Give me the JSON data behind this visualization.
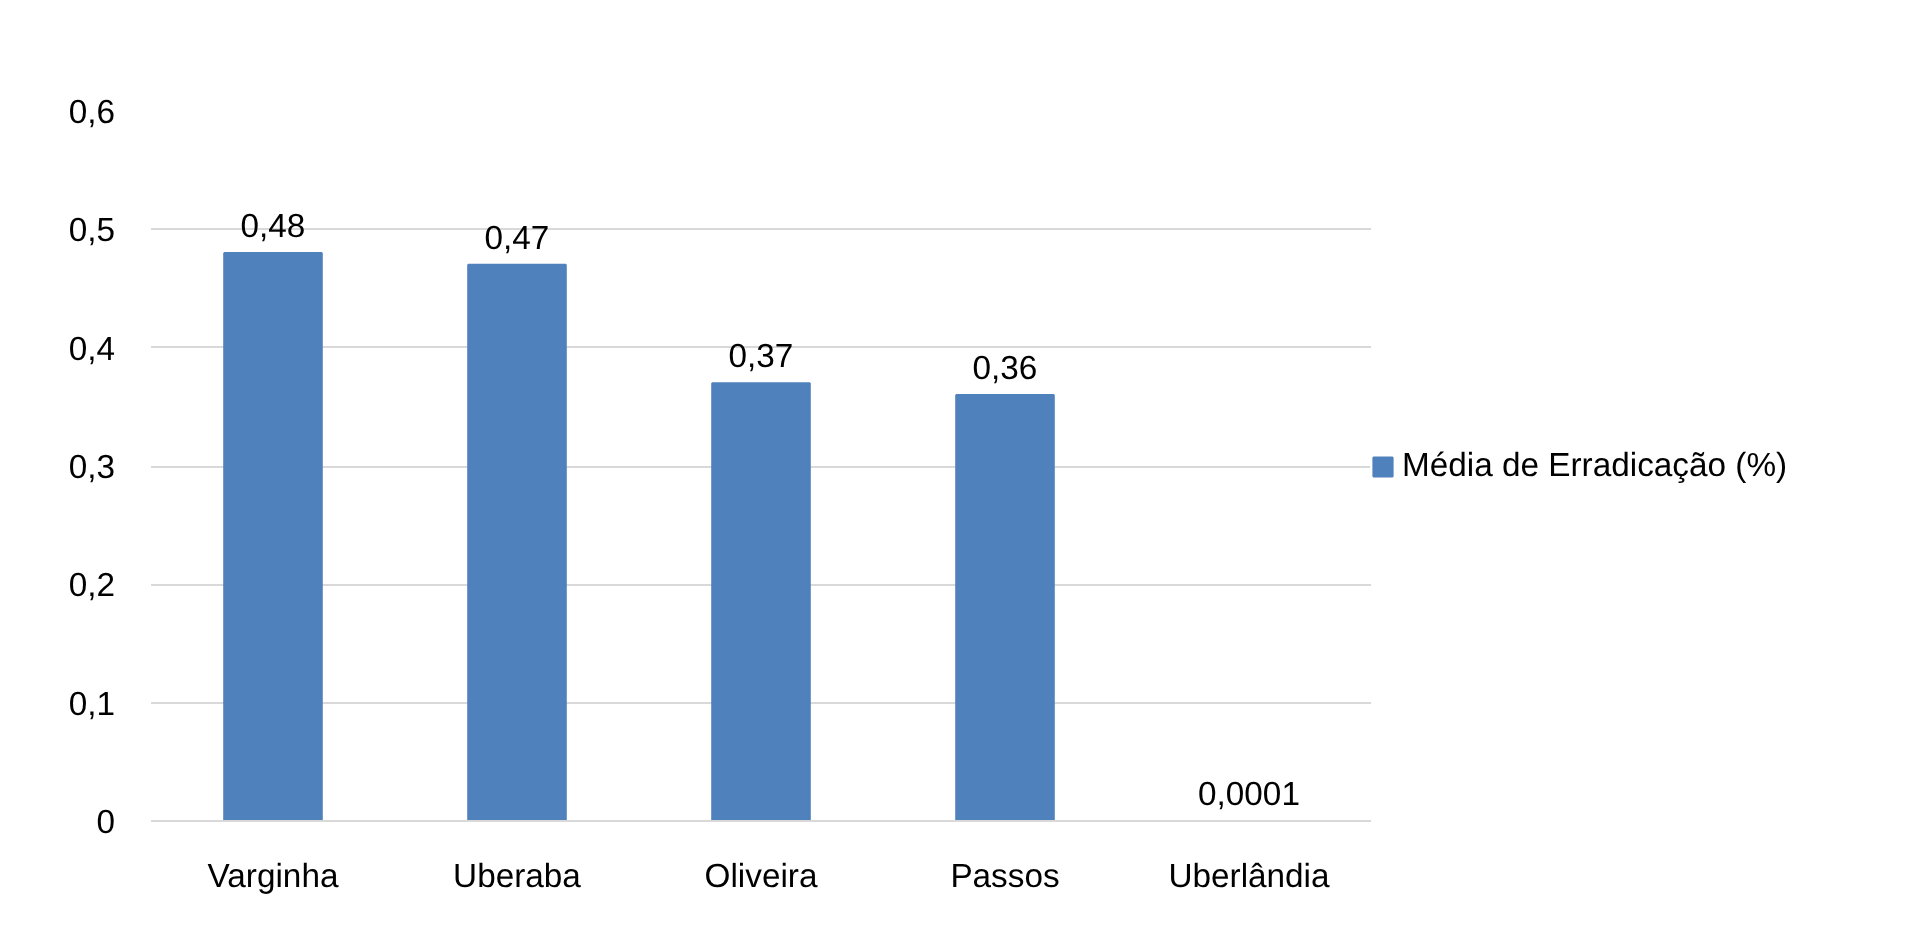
{
  "chart_data": {
    "type": "bar",
    "categories": [
      "Varginha",
      "Uberaba",
      "Oliveira",
      "Passos",
      "Uberlândia"
    ],
    "series": [
      {
        "name": "Média de Erradicação (%)",
        "color": "#4f81bd",
        "values": [
          0.48,
          0.47,
          0.37,
          0.36,
          0.0001
        ],
        "value_labels": [
          "0,48",
          "0,47",
          "0,37",
          "0,36",
          "0,0001"
        ]
      }
    ],
    "ylim": [
      0,
      0.6
    ],
    "yticks": [
      0,
      {
        "value": 0.1,
        "label": "0,1"
      },
      {
        "value": 0.2,
        "label": "0,2"
      },
      {
        "value": 0.3,
        "label": "0,3"
      },
      {
        "value": 0.4,
        "label": "0,4"
      },
      {
        "value": 0.5,
        "label": "0,5"
      },
      {
        "value": 0.6,
        "label": "0,6"
      }
    ],
    "grid": "y",
    "legend": "right"
  }
}
